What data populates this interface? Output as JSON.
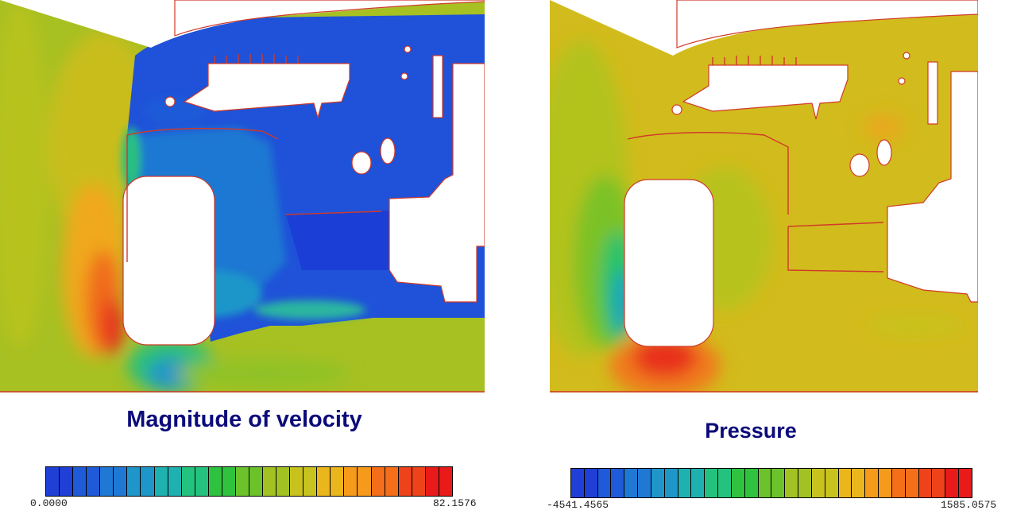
{
  "panels": {
    "velocity": {
      "caption": "Magnitude of velocity",
      "scale_min": "0.0000",
      "scale_max": "82.1576"
    },
    "pressure": {
      "caption": "Pressure",
      "scale_min": "-4541.4565",
      "scale_max": "1585.0575"
    }
  },
  "colormap": [
    "#1f3fd6",
    "#1f5ad8",
    "#1f79d4",
    "#1e96c9",
    "#1fb1b0",
    "#24c27f",
    "#2fc23e",
    "#6cc22a",
    "#a2c224",
    "#c8c21f",
    "#ebb61b",
    "#f59a1a",
    "#f56e1a",
    "#ee421a",
    "#e81a1a"
  ],
  "colors": {
    "caption": "#0b0b7a",
    "body_outline": "#d03a2a"
  }
}
